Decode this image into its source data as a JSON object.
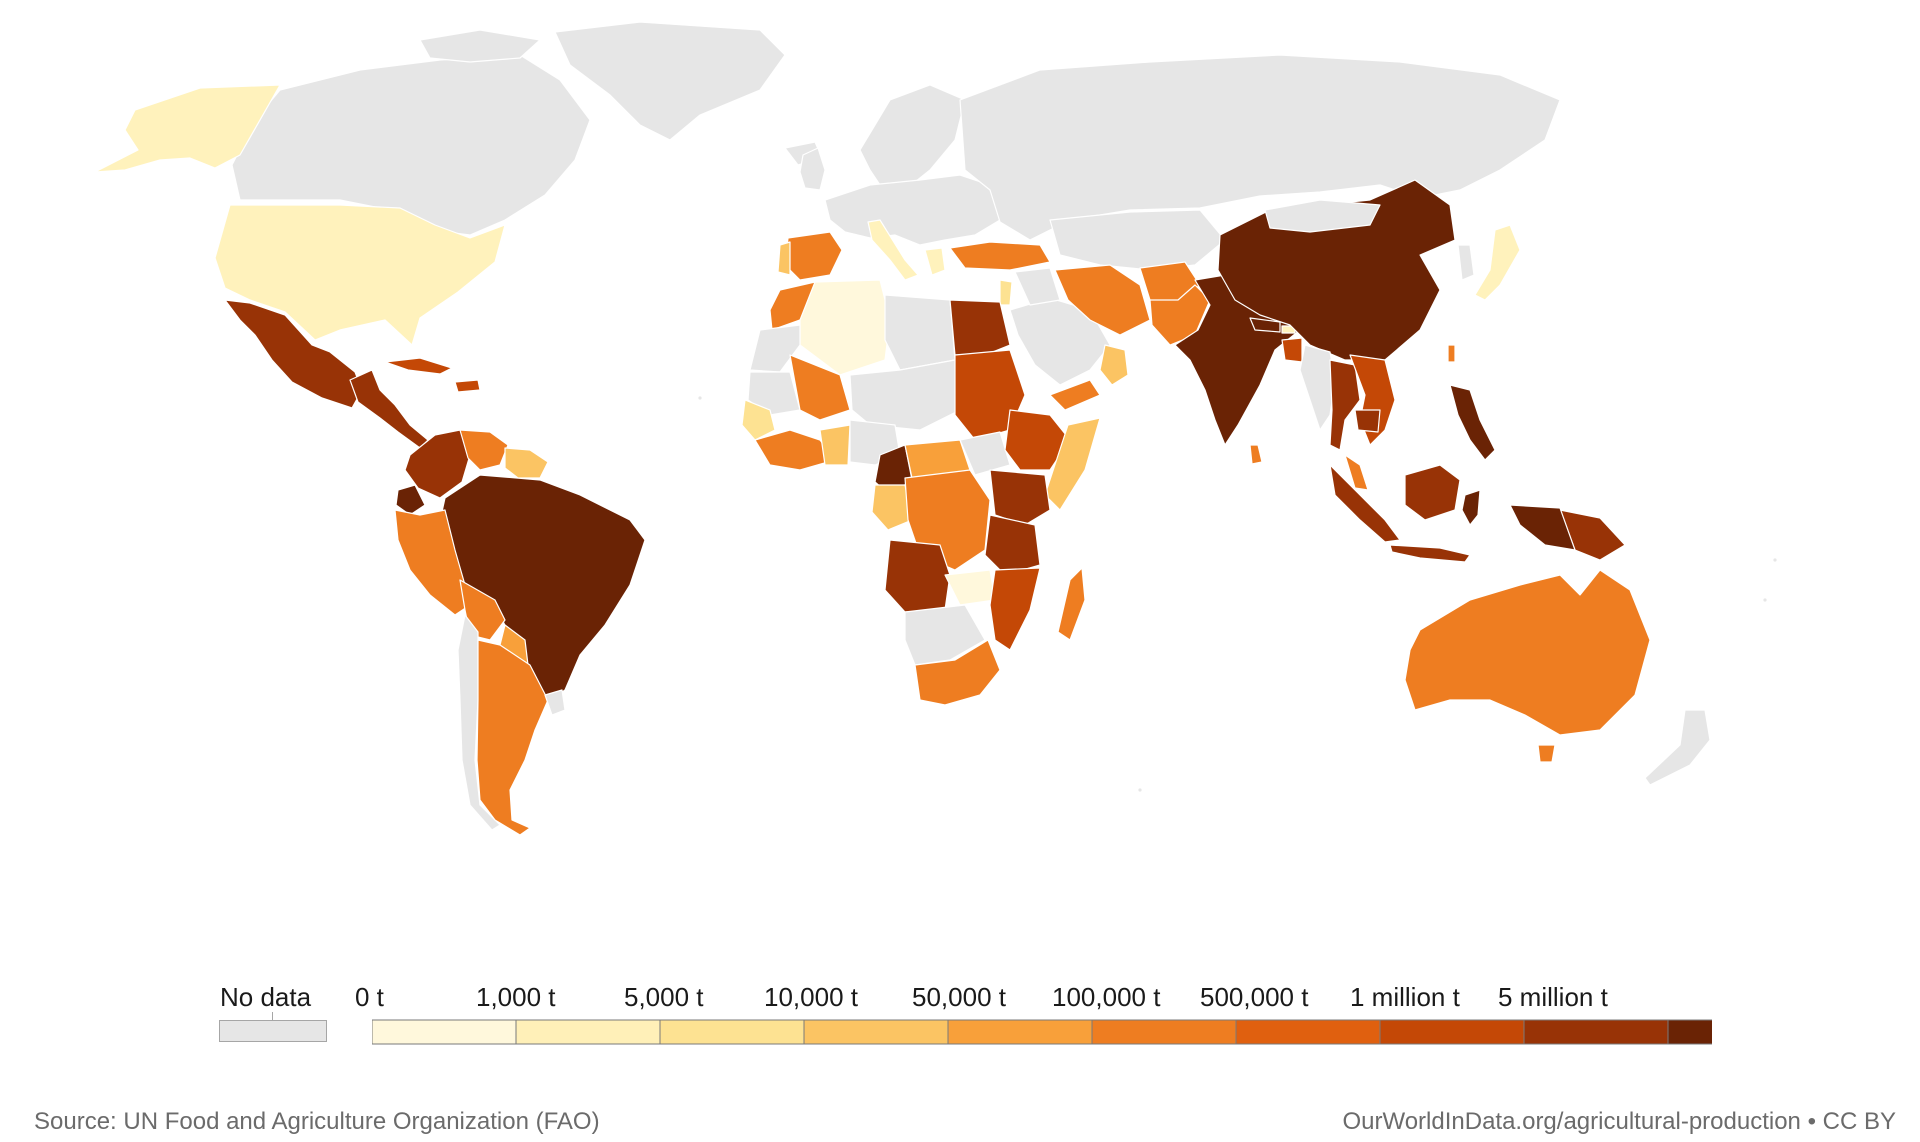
{
  "legend": {
    "no_data_label": "No data",
    "thresholds": [
      "0 t",
      "1,000 t",
      "5,000 t",
      "10,000 t",
      "50,000 t",
      "100,000 t",
      "500,000 t",
      "1 million t",
      "5 million t"
    ],
    "colors": [
      "#fff8dc",
      "#fff0b8",
      "#fde292",
      "#fbc463",
      "#f8a03a",
      "#ee7d21",
      "#e0600f",
      "#c44806",
      "#983306",
      "#6a2305"
    ],
    "no_data_color": "#e6e6e6"
  },
  "footer": {
    "source": "Source: UN Food and Agriculture Organization (FAO)",
    "credit": "OurWorldInData.org/agricultural-production • CC BY"
  }
}
